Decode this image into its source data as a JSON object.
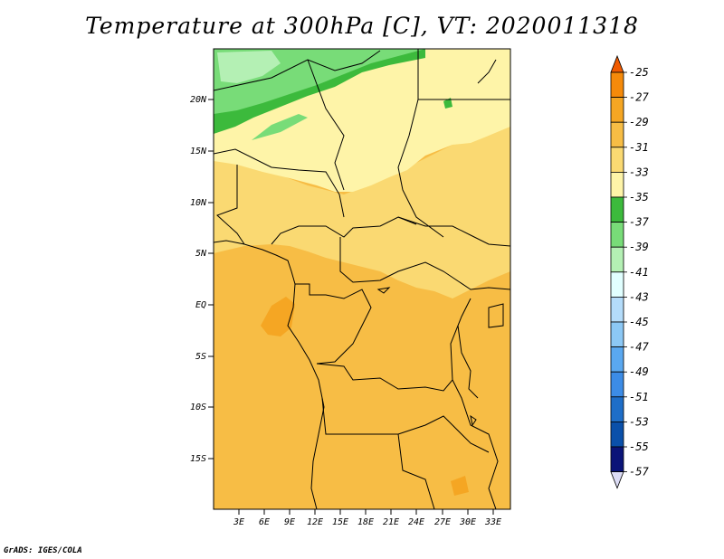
{
  "title": "Temperature at 300hPa [C], VT: 2020011318",
  "credit": "GrADS: IGES/COLA",
  "lat_labels": [
    "20N",
    "15N",
    "10N",
    "5N",
    "EQ",
    "5S",
    "10S",
    "15S"
  ],
  "lon_labels": [
    "3E",
    "6E",
    "9E",
    "12E",
    "15E",
    "18E",
    "21E",
    "24E",
    "27E",
    "30E",
    "33E"
  ],
  "legend": {
    "labels": [
      "-25",
      "-27",
      "-29",
      "-31",
      "-33",
      "-35",
      "-37",
      "-39",
      "-41",
      "-43",
      "-45",
      "-47",
      "-49",
      "-51",
      "-53",
      "-55",
      "-57"
    ],
    "colors": [
      "#f05a00",
      "#f58a0a",
      "#f5a623",
      "#f7bd45",
      "#fad972",
      "#fef4a8",
      "#3cba3c",
      "#78dc78",
      "#b4f0b4",
      "#e1ffff",
      "#b4dcfa",
      "#8cc8f5",
      "#5aa8f0",
      "#3c8ce6",
      "#1e6ec8",
      "#0a50aa",
      "#0a1478",
      "#dcdcf5"
    ]
  },
  "colors": {
    "ocean": "#f7bd45",
    "light_band": "#fef4a8",
    "mid_band": "#fad972",
    "green_dark": "#3cba3c",
    "green_mid": "#78dc78",
    "green_light": "#b4f0b4",
    "warm_patch": "#f5a623"
  }
}
